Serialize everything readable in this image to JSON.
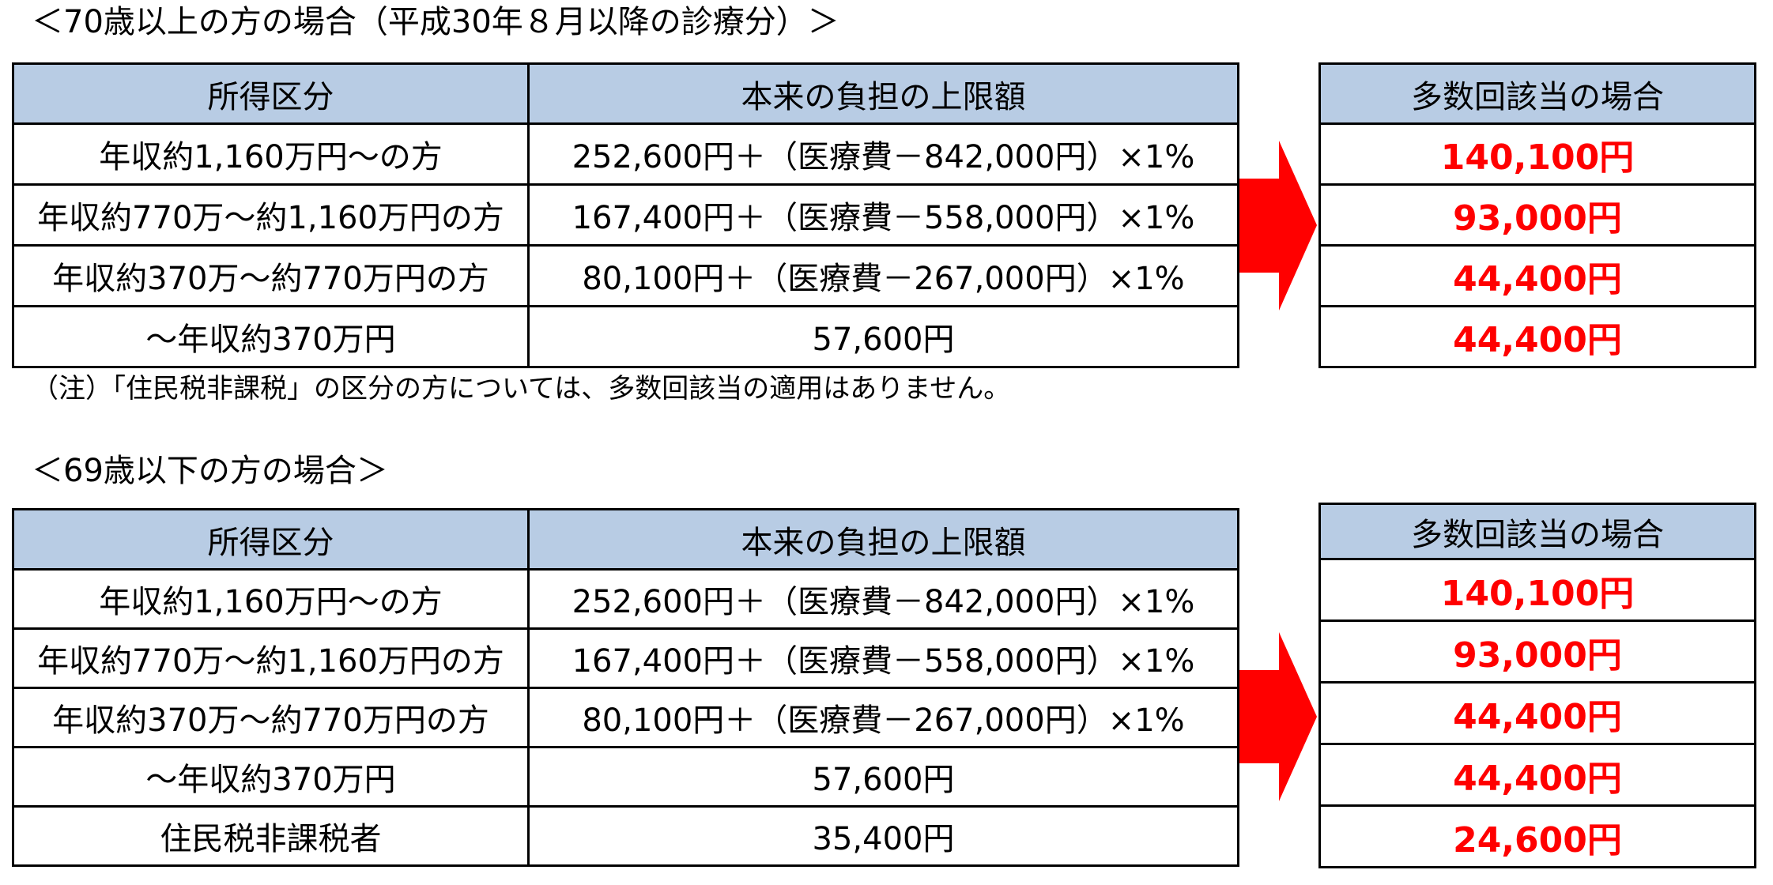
{
  "section1": {
    "heading": "＜70歳以上の方の場合（平成30年８月以降の診療分）＞",
    "headers": {
      "income": "所得区分",
      "limit": "本来の負担の上限額",
      "multi": "多数回該当の場合"
    },
    "rows": [
      {
        "income": "年収約1,160万円～の方",
        "limit": "252,600円＋（医療費－842,000円）×1%",
        "multi": "140,100円"
      },
      {
        "income": "年収約770万～約1,160万円の方",
        "limit": "167,400円＋（医療費－558,000円）×1%",
        "multi": "93,000円"
      },
      {
        "income": "年収約370万～約770万円の方",
        "limit": "80,100円＋（医療費－267,000円）×1%",
        "multi": "44,400円"
      },
      {
        "income": "～年収約370万円",
        "limit": "57,600円",
        "multi": "44,400円"
      }
    ],
    "note": "（注）「住民税非課税」の区分の方については、多数回該当の適用はありません。"
  },
  "section2": {
    "heading": "＜69歳以下の方の場合＞",
    "headers": {
      "income": "所得区分",
      "limit": "本来の負担の上限額",
      "multi": "多数回該当の場合"
    },
    "rows": [
      {
        "income": "年収約1,160万円～の方",
        "limit": "252,600円＋（医療費－842,000円）×1%",
        "multi": "140,100円"
      },
      {
        "income": "年収約770万～約1,160万円の方",
        "limit": "167,400円＋（医療費－558,000円）×1%",
        "multi": "93,000円"
      },
      {
        "income": "年収約370万～約770万円の方",
        "limit": "80,100円＋（医療費－267,000円）×1%",
        "multi": "44,400円"
      },
      {
        "income": "～年収約370万円",
        "limit": "57,600円",
        "multi": "44,400円"
      },
      {
        "income": "住民税非課税者",
        "limit": "35,400円",
        "multi": "24,600円"
      }
    ]
  },
  "colors": {
    "header_bg": "#b8cce4",
    "highlight_text": "#ff0000",
    "arrow": "#ff0000"
  },
  "icons": {
    "arrow": "right-arrow-icon"
  }
}
